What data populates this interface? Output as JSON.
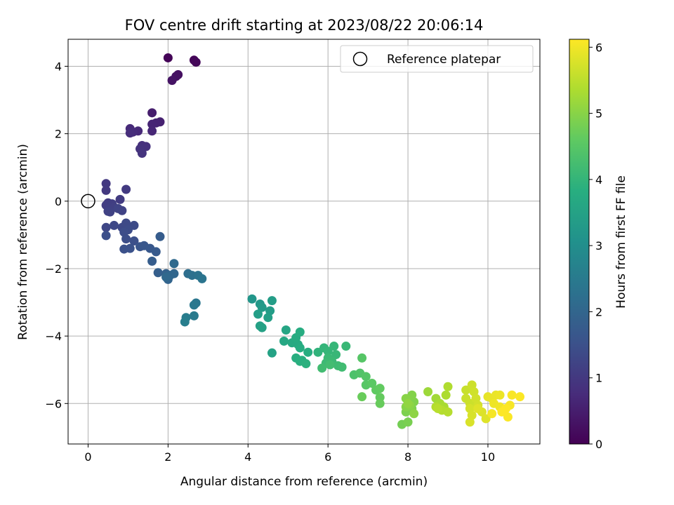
{
  "chart_data": {
    "type": "scatter",
    "title": "FOV centre drift starting at 2023/08/22 20:06:14",
    "xlabel": "Angular distance from reference (arcmin)",
    "ylabel": "Rotation from reference (arcmin)",
    "xlim": [
      -0.5,
      11.3
    ],
    "ylim": [
      -7.2,
      4.8
    ],
    "xticks": [
      0,
      2,
      4,
      6,
      8,
      10
    ],
    "yticks": [
      -6,
      -4,
      -2,
      0,
      2,
      4
    ],
    "grid": true,
    "legend": {
      "placement": "top-right",
      "entries": [
        "Reference platepar"
      ]
    },
    "reference_point": {
      "x": 0,
      "y": 0
    },
    "colorbar": {
      "label": "Hours from first FF file",
      "range": [
        0,
        6.12
      ],
      "ticks": [
        0,
        1,
        2,
        3,
        4,
        5,
        6
      ],
      "colormap": "viridis"
    },
    "points": [
      [
        2.0,
        4.25,
        0.05
      ],
      [
        2.65,
        4.18,
        0.07
      ],
      [
        2.7,
        4.12,
        0.1
      ],
      [
        2.25,
        3.75,
        0.25
      ],
      [
        2.2,
        3.7,
        0.28
      ],
      [
        2.1,
        3.58,
        0.32
      ],
      [
        1.6,
        2.62,
        0.5
      ],
      [
        1.8,
        2.35,
        0.55
      ],
      [
        1.7,
        2.32,
        0.6
      ],
      [
        1.6,
        2.28,
        0.62
      ],
      [
        1.6,
        2.08,
        0.66
      ],
      [
        1.25,
        2.08,
        0.7
      ],
      [
        1.05,
        2.15,
        0.72
      ],
      [
        1.12,
        2.05,
        0.75
      ],
      [
        1.05,
        2.02,
        0.78
      ],
      [
        1.35,
        1.65,
        0.82
      ],
      [
        1.45,
        1.62,
        0.85
      ],
      [
        1.3,
        1.55,
        0.88
      ],
      [
        1.35,
        1.42,
        0.92
      ],
      [
        0.45,
        0.52,
        1.0
      ],
      [
        0.45,
        0.32,
        1.02
      ],
      [
        0.95,
        0.35,
        1.04
      ],
      [
        0.8,
        0.05,
        1.06
      ],
      [
        0.5,
        -0.05,
        1.08
      ],
      [
        0.45,
        -0.12,
        1.1
      ],
      [
        0.6,
        -0.08,
        1.12
      ],
      [
        0.55,
        -0.2,
        1.14
      ],
      [
        0.65,
        -0.18,
        1.16
      ],
      [
        0.5,
        -0.3,
        1.18
      ],
      [
        0.55,
        -0.32,
        1.2
      ],
      [
        0.85,
        -0.28,
        1.22
      ],
      [
        0.75,
        -0.22,
        1.24
      ],
      [
        0.45,
        -0.78,
        1.3
      ],
      [
        0.65,
        -0.72,
        1.32
      ],
      [
        0.85,
        -0.78,
        1.34
      ],
      [
        0.95,
        -0.65,
        1.36
      ],
      [
        1.15,
        -0.72,
        1.38
      ],
      [
        1.0,
        -0.85,
        1.4
      ],
      [
        0.9,
        -0.92,
        1.42
      ],
      [
        0.95,
        -1.12,
        1.44
      ],
      [
        0.45,
        -1.02,
        1.46
      ],
      [
        1.15,
        -1.18,
        1.48
      ],
      [
        0.9,
        -1.42,
        1.5
      ],
      [
        1.05,
        -1.4,
        1.52
      ],
      [
        1.3,
        -1.35,
        1.6
      ],
      [
        1.4,
        -1.32,
        1.64
      ],
      [
        1.55,
        -1.4,
        1.68
      ],
      [
        1.7,
        -1.5,
        1.72
      ],
      [
        1.8,
        -1.05,
        1.76
      ],
      [
        1.6,
        -1.78,
        1.8
      ],
      [
        1.75,
        -2.12,
        1.85
      ],
      [
        1.95,
        -2.15,
        1.9
      ],
      [
        2.0,
        -2.32,
        1.95
      ],
      [
        2.15,
        -2.15,
        2.0
      ],
      [
        2.05,
        -2.2,
        2.02
      ],
      [
        1.95,
        -2.25,
        2.05
      ],
      [
        2.15,
        -1.85,
        2.1
      ],
      [
        2.5,
        -2.15,
        2.2
      ],
      [
        2.6,
        -2.2,
        2.25
      ],
      [
        2.75,
        -2.2,
        2.3
      ],
      [
        2.85,
        -2.3,
        2.35
      ],
      [
        2.7,
        -3.02,
        2.4
      ],
      [
        2.65,
        -3.08,
        2.45
      ],
      [
        2.65,
        -3.4,
        2.5
      ],
      [
        2.45,
        -3.45,
        2.55
      ],
      [
        2.42,
        -3.58,
        2.6
      ],
      [
        4.1,
        -2.9,
        3.2
      ],
      [
        4.3,
        -3.05,
        3.25
      ],
      [
        4.35,
        -3.15,
        3.3
      ],
      [
        4.55,
        -3.25,
        3.35
      ],
      [
        4.6,
        -2.95,
        3.38
      ],
      [
        4.25,
        -3.35,
        3.4
      ],
      [
        4.5,
        -3.45,
        3.42
      ],
      [
        4.3,
        -3.7,
        3.45
      ],
      [
        4.35,
        -3.75,
        3.48
      ],
      [
        4.6,
        -4.5,
        3.52
      ],
      [
        4.95,
        -3.82,
        3.6
      ],
      [
        4.9,
        -4.15,
        3.65
      ],
      [
        5.1,
        -4.2,
        3.7
      ],
      [
        5.25,
        -4.25,
        3.72
      ],
      [
        5.2,
        -4.05,
        3.74
      ],
      [
        5.3,
        -4.35,
        3.76
      ],
      [
        5.3,
        -3.88,
        3.78
      ],
      [
        5.5,
        -4.48,
        3.8
      ],
      [
        5.2,
        -4.65,
        3.82
      ],
      [
        5.35,
        -4.72,
        3.84
      ],
      [
        5.3,
        -4.75,
        3.86
      ],
      [
        5.45,
        -4.82,
        3.88
      ],
      [
        5.75,
        -4.48,
        3.95
      ],
      [
        5.9,
        -4.35,
        4.0
      ],
      [
        6.0,
        -4.45,
        4.02
      ],
      [
        6.15,
        -4.3,
        4.04
      ],
      [
        6.2,
        -4.55,
        4.06
      ],
      [
        6.45,
        -4.3,
        4.08
      ],
      [
        6.0,
        -4.65,
        4.1
      ],
      [
        6.1,
        -4.75,
        4.12
      ],
      [
        5.95,
        -4.8,
        4.14
      ],
      [
        6.25,
        -4.88,
        4.16
      ],
      [
        6.35,
        -4.92,
        4.18
      ],
      [
        5.85,
        -4.95,
        4.2
      ],
      [
        6.05,
        -4.85,
        4.22
      ],
      [
        6.65,
        -5.15,
        4.35
      ],
      [
        6.8,
        -5.1,
        4.4
      ],
      [
        6.95,
        -5.2,
        4.45
      ],
      [
        6.85,
        -4.65,
        4.48
      ],
      [
        6.95,
        -5.45,
        4.5
      ],
      [
        7.1,
        -5.4,
        4.55
      ],
      [
        7.2,
        -5.6,
        4.6
      ],
      [
        7.3,
        -5.55,
        4.62
      ],
      [
        7.3,
        -5.82,
        4.65
      ],
      [
        7.3,
        -6.0,
        4.68
      ],
      [
        6.85,
        -5.8,
        4.7
      ],
      [
        7.85,
        -6.62,
        4.8
      ],
      [
        8.0,
        -6.55,
        4.85
      ],
      [
        7.95,
        -6.25,
        4.88
      ],
      [
        8.1,
        -6.15,
        4.9
      ],
      [
        8.15,
        -5.95,
        4.92
      ],
      [
        8.1,
        -5.75,
        4.95
      ],
      [
        7.95,
        -6.1,
        4.98
      ],
      [
        7.95,
        -5.85,
        5.0
      ],
      [
        8.05,
        -6.05,
        5.02
      ],
      [
        8.15,
        -6.3,
        5.05
      ],
      [
        8.0,
        -6.0,
        5.08
      ],
      [
        8.5,
        -5.65,
        5.2
      ],
      [
        8.7,
        -5.85,
        5.25
      ],
      [
        8.8,
        -6.0,
        5.3
      ],
      [
        8.9,
        -6.1,
        5.32
      ],
      [
        8.95,
        -5.75,
        5.35
      ],
      [
        9.0,
        -5.5,
        5.38
      ],
      [
        8.7,
        -6.1,
        5.4
      ],
      [
        8.85,
        -6.2,
        5.42
      ],
      [
        9.0,
        -6.25,
        5.44
      ],
      [
        8.75,
        -6.15,
        5.46
      ],
      [
        9.45,
        -5.6,
        5.6
      ],
      [
        9.45,
        -5.85,
        5.62
      ],
      [
        9.55,
        -6.0,
        5.64
      ],
      [
        9.6,
        -5.45,
        5.66
      ],
      [
        9.65,
        -5.65,
        5.68
      ],
      [
        9.7,
        -5.85,
        5.7
      ],
      [
        9.75,
        -6.05,
        5.72
      ],
      [
        9.55,
        -6.15,
        5.74
      ],
      [
        9.6,
        -6.35,
        5.76
      ],
      [
        9.55,
        -6.55,
        5.78
      ],
      [
        9.85,
        -6.25,
        5.8
      ],
      [
        9.95,
        -6.45,
        5.82
      ],
      [
        9.75,
        -6.15,
        5.84
      ],
      [
        10.0,
        -5.8,
        5.9
      ],
      [
        10.1,
        -5.85,
        5.92
      ],
      [
        10.2,
        -5.75,
        5.94
      ],
      [
        10.3,
        -5.75,
        5.96
      ],
      [
        10.15,
        -6.0,
        5.98
      ],
      [
        10.3,
        -6.1,
        6.0
      ],
      [
        10.4,
        -6.2,
        6.02
      ],
      [
        10.1,
        -6.3,
        6.04
      ],
      [
        10.55,
        -6.05,
        6.06
      ],
      [
        10.6,
        -5.75,
        6.08
      ],
      [
        10.5,
        -6.4,
        6.09
      ],
      [
        10.8,
        -5.8,
        6.1
      ],
      [
        10.45,
        -6.15,
        6.11
      ],
      [
        10.35,
        -6.25,
        6.12
      ]
    ]
  }
}
